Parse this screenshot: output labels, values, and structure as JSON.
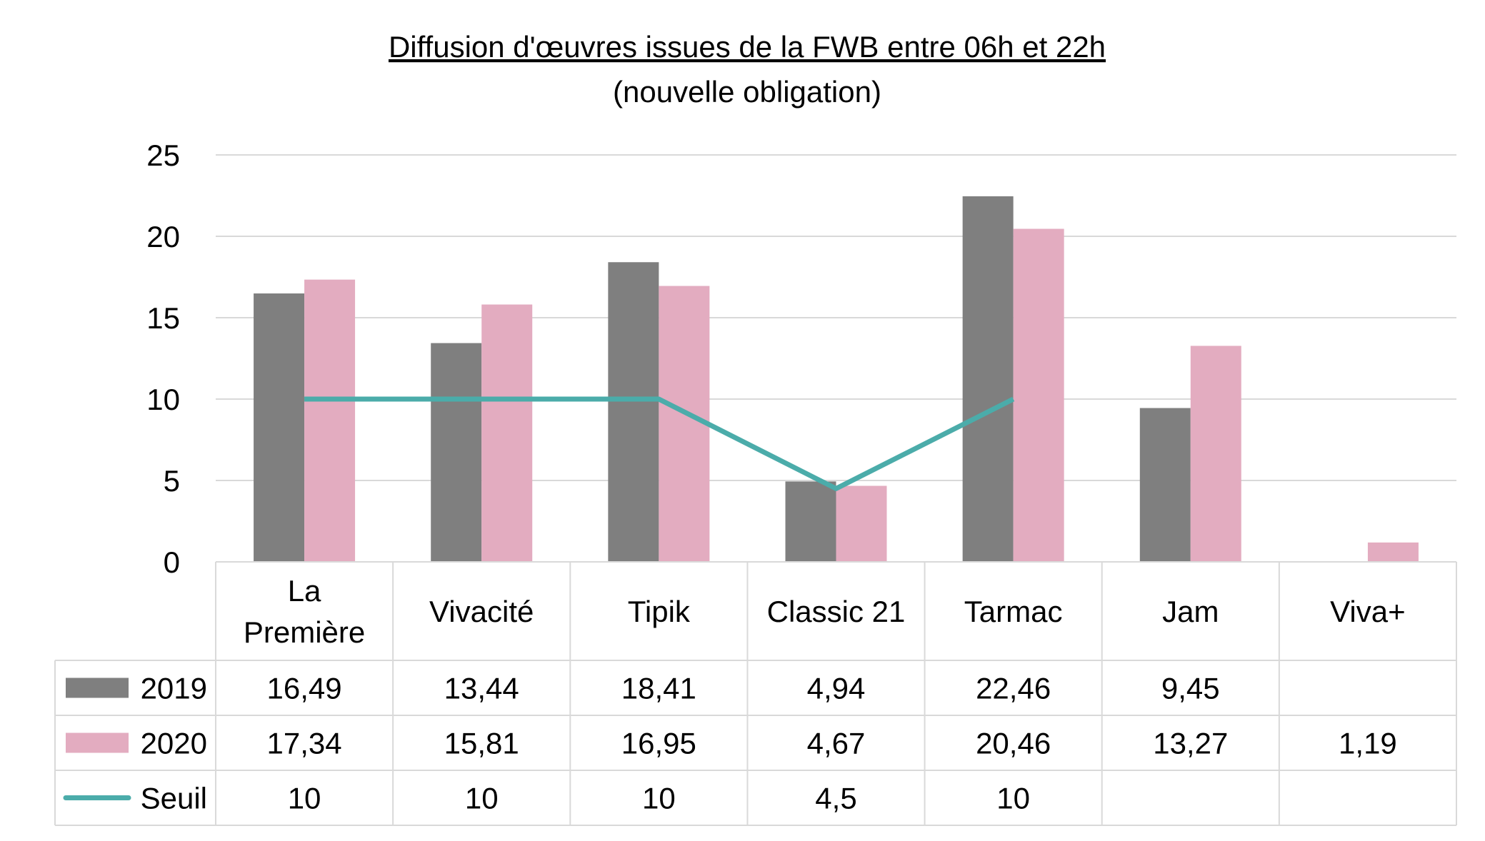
{
  "chart_data": {
    "type": "bar",
    "title": "Diffusion d'œuvres issues de la FWB entre 06h et 22h",
    "subtitle": "(nouvelle obligation)",
    "categories": [
      "La Première",
      "Vivacité",
      "Tipik",
      "Classic 21",
      "Tarmac",
      "Jam",
      "Viva+"
    ],
    "category_lines": [
      [
        "La",
        "Première"
      ],
      [
        "Vivacité"
      ],
      [
        "Tipik"
      ],
      [
        "Classic 21"
      ],
      [
        "Tarmac"
      ],
      [
        "Jam"
      ],
      [
        "Viva+"
      ]
    ],
    "series": [
      {
        "name": "2019",
        "kind": "bar",
        "color": "#7f7f7f",
        "values": [
          16.49,
          13.44,
          18.41,
          4.94,
          22.46,
          9.45,
          null
        ],
        "labels": [
          "16,49",
          "13,44",
          "18,41",
          "4,94",
          "22,46",
          "9,45",
          ""
        ]
      },
      {
        "name": "2020",
        "kind": "bar",
        "color": "#e3acc0",
        "values": [
          17.34,
          15.81,
          16.95,
          4.67,
          20.46,
          13.27,
          1.19
        ],
        "labels": [
          "17,34",
          "15,81",
          "16,95",
          "4,67",
          "20,46",
          "13,27",
          "1,19"
        ]
      },
      {
        "name": "Seuil",
        "kind": "line",
        "color": "#4bacaa",
        "values": [
          10,
          10,
          10,
          4.5,
          10,
          null,
          null
        ],
        "labels": [
          "10",
          "10",
          "10",
          "4,5",
          "10",
          "",
          ""
        ]
      }
    ],
    "y_ticks": [
      0,
      5,
      10,
      15,
      20,
      25
    ],
    "ylim": [
      0,
      25
    ],
    "grid": true,
    "legend": "data-table"
  }
}
